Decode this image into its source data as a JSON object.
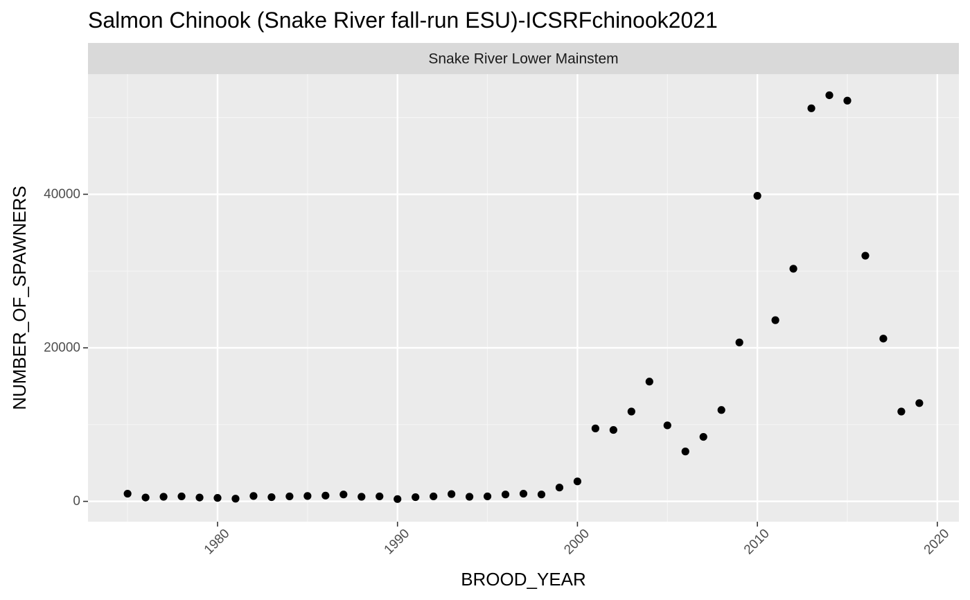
{
  "chart_data": {
    "type": "scatter",
    "title": "Salmon Chinook (Snake River fall-run ESU)-ICSRFchinook2021",
    "facet": "Snake River Lower Mainstem",
    "xlabel": "BROOD_YEAR",
    "ylabel": "NUMBER_OF_SPAWNERS",
    "xlim": [
      1972.8,
      2021.2
    ],
    "ylim": [
      -2650,
      55650
    ],
    "xticks": [
      1980,
      1990,
      2000,
      2010,
      2020
    ],
    "yticks": [
      0,
      20000,
      40000
    ],
    "grid": true,
    "colors": {
      "panel_bg": "#ebebeb",
      "strip_bg": "#d9d9d9",
      "grid_major": "#ffffff",
      "grid_minor": "#f5f5f5",
      "point": "#000000",
      "tick_text": "#4d4d4d"
    },
    "x": [
      1975,
      1976,
      1977,
      1978,
      1979,
      1980,
      1981,
      1982,
      1983,
      1984,
      1985,
      1986,
      1987,
      1988,
      1989,
      1990,
      1991,
      1992,
      1993,
      1994,
      1995,
      1996,
      1997,
      1998,
      1999,
      2000,
      2001,
      2002,
      2003,
      2004,
      2005,
      2006,
      2007,
      2008,
      2009,
      2010,
      2011,
      2012,
      2013,
      2014,
      2015,
      2016,
      2017,
      2018,
      2019
    ],
    "y": [
      1000,
      500,
      600,
      650,
      500,
      450,
      350,
      700,
      550,
      650,
      700,
      750,
      900,
      600,
      650,
      300,
      550,
      650,
      950,
      600,
      650,
      900,
      1000,
      900,
      1800,
      2600,
      9500,
      9300,
      11700,
      15600,
      9900,
      6500,
      8400,
      11900,
      20700,
      39800,
      23600,
      30300,
      51200,
      52900,
      52200,
      32000,
      21200,
      11700,
      12800
    ]
  }
}
